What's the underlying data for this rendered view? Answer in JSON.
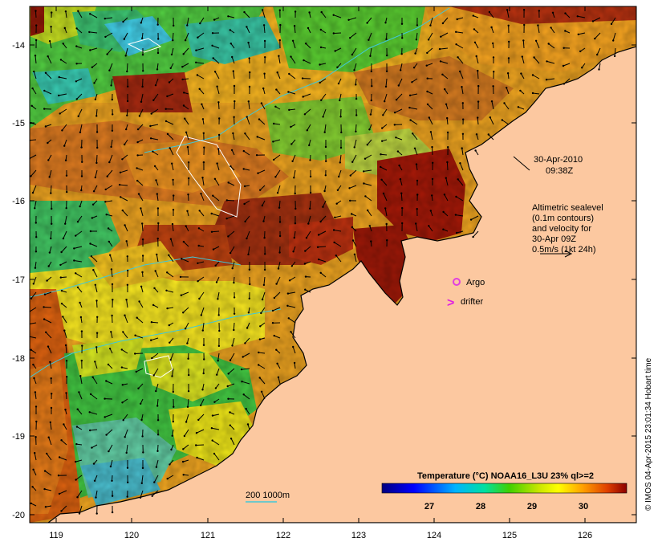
{
  "map": {
    "lon_ticks": [
      "119",
      "120",
      "121",
      "122",
      "123",
      "124",
      "125",
      "126"
    ],
    "lat_ticks": [
      "-14",
      "-15",
      "-16",
      "-17",
      "-18",
      "-19",
      "-20"
    ],
    "date_label": "30-Apr-2010",
    "time_label": "09:38Z",
    "legend_lines": [
      "Altimetric sealevel",
      "(0.1m contours)",
      "and velocity for",
      "30-Apr 09Z",
      "0.5m/s (1kt 24h)"
    ],
    "argo_label": "Argo",
    "drifter_label": "drifter",
    "drifter_symbol": ">",
    "isobath_label": "200  1000m",
    "colorbar_title": "Temperature (°C) NOAA16_L3U 23% ql>=2",
    "colorbar_ticks": [
      "27",
      "28",
      "29",
      "30"
    ],
    "credit": "© IMOS 04-Apr-2015 23:01:34 Hobart time",
    "colors": {
      "land": "#fcc8a0",
      "argo": "#e040e0",
      "drifter": "#e020e0",
      "isobath": "#40c8d8"
    }
  }
}
